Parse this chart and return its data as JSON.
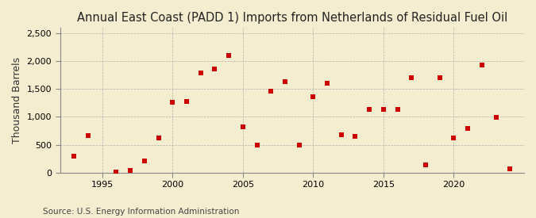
{
  "title": "Annual East Coast (PADD 1) Imports from Netherlands of Residual Fuel Oil",
  "ylabel": "Thousand Barrels",
  "source": "Source: U.S. Energy Information Administration",
  "background_color": "#f5edcf",
  "plot_bg_color": "#f5edcf",
  "point_color": "#cc0000",
  "marker": "s",
  "marker_size": 5,
  "years": [
    1993,
    1994,
    1996,
    1997,
    1998,
    1999,
    2000,
    2001,
    2002,
    2003,
    2004,
    2005,
    2006,
    2007,
    2008,
    2009,
    2010,
    2011,
    2012,
    2013,
    2014,
    2015,
    2016,
    2017,
    2018,
    2019,
    2020,
    2021,
    2022,
    2023,
    2024
  ],
  "values": [
    290,
    660,
    10,
    30,
    210,
    615,
    1260,
    1280,
    1790,
    1870,
    2100,
    820,
    490,
    1460,
    1640,
    500,
    1370,
    1610,
    680,
    645,
    1130,
    1140,
    1140,
    1700,
    130,
    1710,
    615,
    790,
    1940,
    990,
    60
  ],
  "xlim": [
    1992,
    2025
  ],
  "ylim": [
    0,
    2600
  ],
  "yticks": [
    0,
    500,
    1000,
    1500,
    2000,
    2500
  ],
  "xticks": [
    1995,
    2000,
    2005,
    2010,
    2015,
    2020
  ],
  "title_fontsize": 10.5,
  "label_fontsize": 9,
  "tick_fontsize": 8,
  "source_fontsize": 7.5
}
